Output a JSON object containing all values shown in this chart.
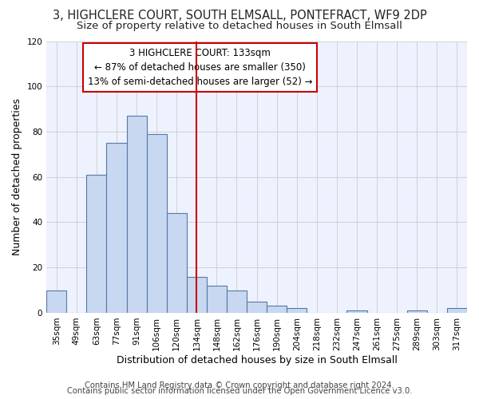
{
  "title": "3, HIGHCLERE COURT, SOUTH ELMSALL, PONTEFRACT, WF9 2DP",
  "subtitle": "Size of property relative to detached houses in South Elmsall",
  "xlabel": "Distribution of detached houses by size in South Elmsall",
  "ylabel": "Number of detached properties",
  "footer1": "Contains HM Land Registry data © Crown copyright and database right 2024.",
  "footer2": "Contains public sector information licensed under the Open Government Licence v3.0.",
  "annotation_title": "3 HIGHCLERE COURT: 133sqm",
  "annotation_line1": "← 87% of detached houses are smaller (350)",
  "annotation_line2": "13% of semi-detached houses are larger (52) →",
  "categories": [
    "35sqm",
    "49sqm",
    "63sqm",
    "77sqm",
    "91sqm",
    "106sqm",
    "120sqm",
    "134sqm",
    "148sqm",
    "162sqm",
    "176sqm",
    "190sqm",
    "204sqm",
    "218sqm",
    "232sqm",
    "247sqm",
    "261sqm",
    "275sqm",
    "289sqm",
    "303sqm",
    "317sqm"
  ],
  "values": [
    10,
    0,
    61,
    75,
    87,
    79,
    44,
    16,
    12,
    10,
    5,
    3,
    2,
    0,
    0,
    1,
    0,
    0,
    1,
    0,
    2
  ],
  "vline_position": 7,
  "bar_color": "#c8d8f0",
  "bar_edge_color": "#5578a8",
  "vline_color": "#cc0000",
  "annotation_box_edge": "#cc0000",
  "background_color": "#ffffff",
  "plot_bg_color": "#eef2ff",
  "grid_color": "#cccccc",
  "title_fontsize": 10.5,
  "subtitle_fontsize": 9.5,
  "xlabel_fontsize": 9,
  "ylabel_fontsize": 9,
  "tick_fontsize": 7.5,
  "annotation_fontsize": 8.5,
  "footer_fontsize": 7.2,
  "ylim": [
    0,
    120
  ]
}
